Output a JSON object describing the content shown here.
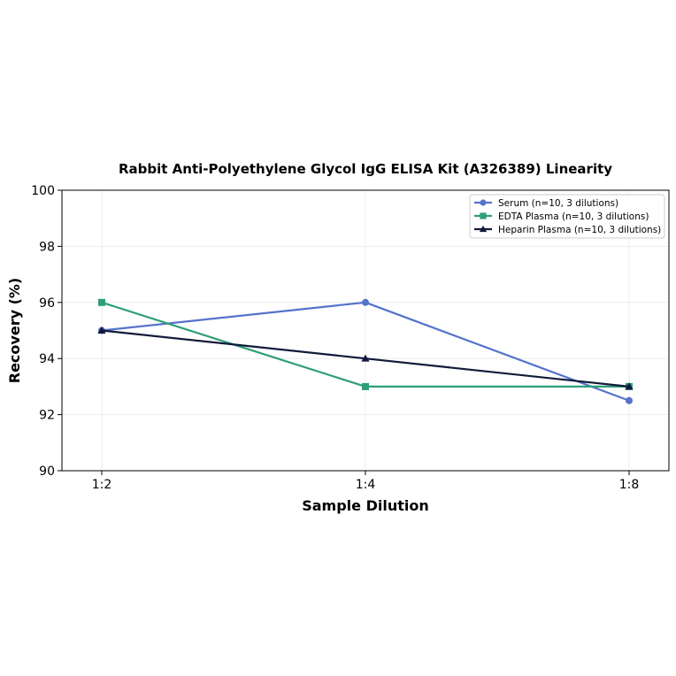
{
  "chart_data": {
    "type": "line",
    "title": "Rabbit Anti-Polyethylene Glycol IgG ELISA Kit (A326389) Linearity",
    "xlabel": "Sample Dilution",
    "ylabel": "Recovery (%)",
    "categories": [
      "1:2",
      "1:4",
      "1:8"
    ],
    "ylim": [
      90,
      100
    ],
    "yticks": [
      90,
      92,
      94,
      96,
      98,
      100
    ],
    "grid": true,
    "legend_position": "top-right",
    "series": [
      {
        "name": "Serum (n=10, 3 dilutions)",
        "values": [
          95,
          96,
          92.5
        ],
        "color": "#5573cc",
        "marker": "circle"
      },
      {
        "name": "EDTA Plasma (n=10, 3 dilutions)",
        "values": [
          96,
          93,
          93
        ],
        "color": "#2e9e78",
        "marker": "square"
      },
      {
        "name": "Heparin Plasma (n=10, 3 dilutions)",
        "values": [
          95,
          94,
          93
        ],
        "color": "#111a3a",
        "marker": "triangle"
      }
    ]
  }
}
